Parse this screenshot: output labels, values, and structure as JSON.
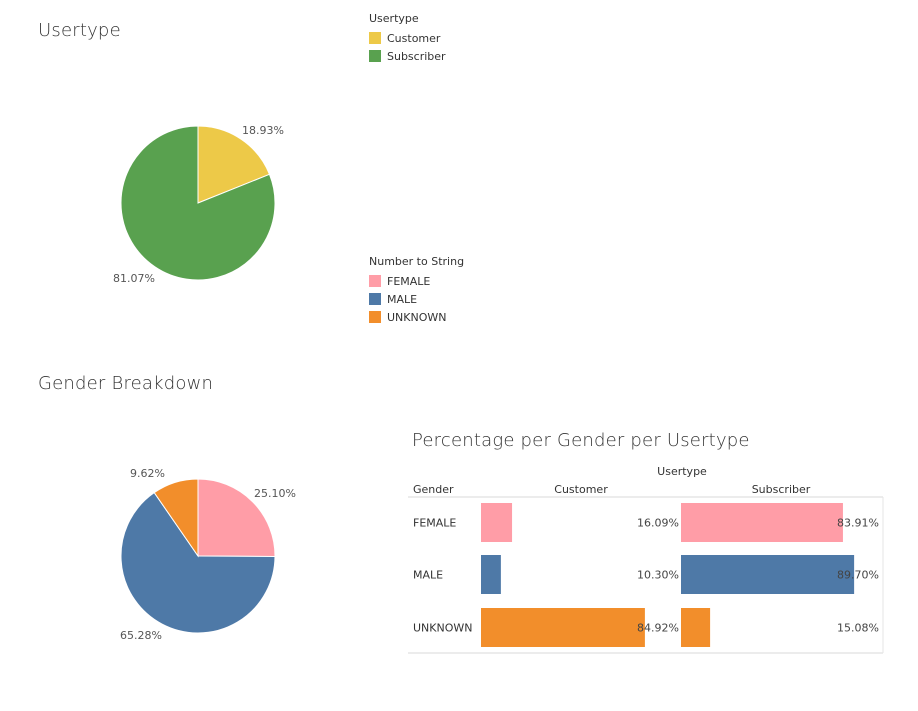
{
  "usertype_section": {
    "title": "Usertype"
  },
  "gender_section": {
    "title": "Gender Breakdown"
  },
  "table_section": {
    "title": "Percentage per Gender per Usertype"
  },
  "legend_usertype": {
    "title": "Usertype",
    "items": [
      {
        "label": "Customer",
        "color": "#EDC948"
      },
      {
        "label": "Subscriber",
        "color": "#59A14F"
      }
    ]
  },
  "legend_gender": {
    "title": "Number to String",
    "items": [
      {
        "label": "FEMALE",
        "color": "#FF9DA7"
      },
      {
        "label": "MALE",
        "color": "#4E79A7"
      },
      {
        "label": "UNKNOWN",
        "color": "#F28E2B"
      }
    ]
  },
  "chart_data": [
    {
      "type": "pie",
      "title": "Usertype",
      "slices": [
        {
          "label": "Customer",
          "value": 18.93,
          "display": "18.93%",
          "color": "#EDC948"
        },
        {
          "label": "Subscriber",
          "value": 81.07,
          "display": "81.07%",
          "color": "#59A14F"
        }
      ]
    },
    {
      "type": "pie",
      "title": "Gender Breakdown",
      "slices": [
        {
          "label": "FEMALE",
          "value": 25.1,
          "display": "25.10%",
          "color": "#FF9DA7"
        },
        {
          "label": "MALE",
          "value": 65.28,
          "display": "65.28%",
          "color": "#4E79A7"
        },
        {
          "label": "UNKNOWN",
          "value": 9.62,
          "display": "9.62%",
          "color": "#F28E2B"
        }
      ]
    },
    {
      "type": "bar",
      "title": "Percentage per Gender per Usertype",
      "column_header": "Usertype",
      "row_header": "Gender",
      "columns": [
        "Customer",
        "Subscriber"
      ],
      "categories": [
        "FEMALE",
        "MALE",
        "UNKNOWN"
      ],
      "xlim": [
        0,
        100
      ],
      "series": [
        {
          "name": "Customer",
          "values": [
            16.09,
            10.3,
            84.92
          ],
          "labels": [
            "16.09%",
            "10.30%",
            "84.92%"
          ]
        },
        {
          "name": "Subscriber",
          "values": [
            83.91,
            89.7,
            15.08
          ],
          "labels": [
            "83.91%",
            "89.70%",
            "15.08%"
          ]
        }
      ],
      "colors": {
        "FEMALE": "#FF9DA7",
        "MALE": "#4E79A7",
        "UNKNOWN": "#F28E2B"
      }
    }
  ]
}
